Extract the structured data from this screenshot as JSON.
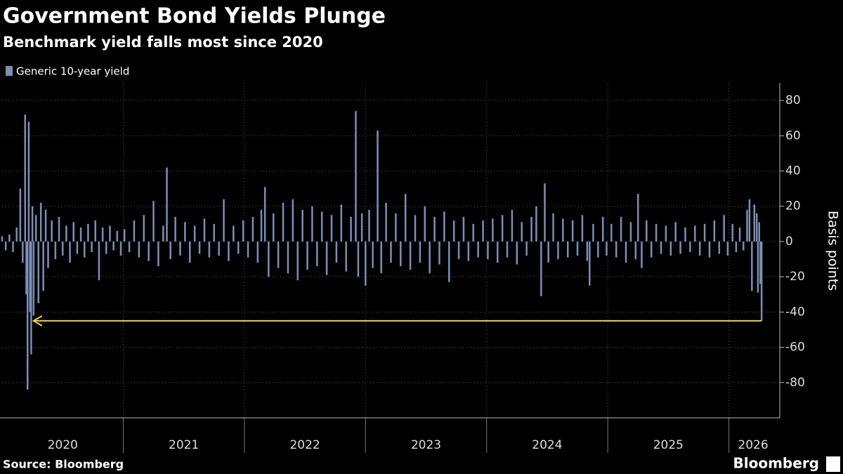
{
  "chart_data": {
    "type": "bar",
    "title": "Government Bond Yields Plunge",
    "subtitle": "Benchmark yield falls most since 2020",
    "y_label": "Basis points",
    "source": "Source: Bloomberg",
    "brand": "Bloomberg",
    "xlim": [
      2020,
      2026.42
    ],
    "ylim": [
      -100,
      90
    ],
    "yticks": [
      -80,
      -60,
      -40,
      -20,
      0,
      20,
      40,
      60,
      80
    ],
    "xgrid": [
      2021,
      2022,
      2023,
      2024,
      2025,
      2026
    ],
    "xticks": [
      {
        "value": 2020.5,
        "label": "2020"
      },
      {
        "value": 2021.5,
        "label": "2021"
      },
      {
        "value": 2022.5,
        "label": "2022"
      },
      {
        "value": 2023.5,
        "label": "2023"
      },
      {
        "value": 2024.5,
        "label": "2024"
      },
      {
        "value": 2025.5,
        "label": "2025"
      },
      {
        "value": 2026.2,
        "label": "2026"
      }
    ],
    "grid": true,
    "arrow": {
      "x": [
        2026.27,
        2020.26
      ],
      "y": -45,
      "color": "#f0d43a"
    },
    "series": [
      {
        "name": "Generic 10-year yield",
        "color": "#7b8fb5",
        "x": [
          2020,
          2020.03,
          2020.06,
          2020.09,
          2020.12,
          2020.15,
          2020.17,
          2020.19,
          2020.2,
          2020.21,
          2020.22,
          2020.23,
          2020.24,
          2020.25,
          2020.26,
          2020.28,
          2020.3,
          2020.32,
          2020.34,
          2020.36,
          2020.38,
          2020.41,
          2020.44,
          2020.47,
          2020.5,
          2020.53,
          2020.56,
          2020.59,
          2020.62,
          2020.65,
          2020.68,
          2020.71,
          2020.74,
          2020.77,
          2020.8,
          2020.83,
          2020.86,
          2020.89,
          2020.92,
          2020.95,
          2020.98,
          2021.01,
          2021.05,
          2021.09,
          2021.13,
          2021.17,
          2021.21,
          2021.25,
          2021.29,
          2021.33,
          2021.36,
          2021.39,
          2021.43,
          2021.47,
          2021.51,
          2021.55,
          2021.59,
          2021.63,
          2021.67,
          2021.71,
          2021.75,
          2021.79,
          2021.83,
          2021.87,
          2021.91,
          2021.95,
          2021.99,
          2022.03,
          2022.07,
          2022.11,
          2022.14,
          2022.17,
          2022.2,
          2022.24,
          2022.28,
          2022.32,
          2022.36,
          2022.4,
          2022.44,
          2022.48,
          2022.52,
          2022.56,
          2022.6,
          2022.64,
          2022.68,
          2022.72,
          2022.76,
          2022.8,
          2022.84,
          2022.88,
          2022.92,
          2022.94,
          2022.97,
          2023,
          2023.03,
          2023.06,
          2023.1,
          2023.13,
          2023.17,
          2023.21,
          2023.25,
          2023.29,
          2023.33,
          2023.37,
          2023.41,
          2023.45,
          2023.49,
          2023.53,
          2023.57,
          2023.61,
          2023.65,
          2023.69,
          2023.73,
          2023.77,
          2023.81,
          2023.85,
          2023.89,
          2023.93,
          2023.97,
          2024.01,
          2024.05,
          2024.09,
          2024.13,
          2024.17,
          2024.21,
          2024.25,
          2024.29,
          2024.33,
          2024.37,
          2024.41,
          2024.45,
          2024.48,
          2024.51,
          2024.55,
          2024.59,
          2024.63,
          2024.67,
          2024.71,
          2024.75,
          2024.79,
          2024.83,
          2024.85,
          2024.88,
          2024.92,
          2024.96,
          2024.99,
          2025.03,
          2025.07,
          2025.11,
          2025.15,
          2025.19,
          2025.23,
          2025.25,
          2025.28,
          2025.32,
          2025.36,
          2025.4,
          2025.44,
          2025.48,
          2025.52,
          2025.56,
          2025.6,
          2025.64,
          2025.68,
          2025.72,
          2025.76,
          2025.8,
          2025.84,
          2025.88,
          2025.92,
          2025.96,
          2025.99,
          2026.03,
          2026.06,
          2026.09,
          2026.12,
          2026.15,
          2026.17,
          2026.19,
          2026.21,
          2026.23,
          2026.24,
          2026.25,
          2026.26,
          2026.27
        ],
        "values": [
          3,
          -5,
          4,
          -6,
          8,
          30,
          -12,
          72,
          -30,
          -84,
          68,
          -40,
          -64,
          20,
          -42,
          15,
          -35,
          22,
          -28,
          18,
          -15,
          12,
          -10,
          14,
          -8,
          9,
          -12,
          11,
          -7,
          8,
          -9,
          10,
          -6,
          12,
          -22,
          8,
          -7,
          9,
          -5,
          6,
          -8,
          7,
          -6,
          12,
          -9,
          15,
          -11,
          23,
          -14,
          9,
          42,
          -10,
          14,
          -8,
          11,
          -12,
          9,
          -7,
          13,
          -9,
          10,
          -8,
          24,
          -11,
          9,
          -7,
          12,
          -9,
          14,
          -12,
          18,
          31,
          -20,
          16,
          -15,
          22,
          -18,
          24,
          -22,
          18,
          -16,
          20,
          -14,
          17,
          -19,
          15,
          -12,
          21,
          -17,
          14,
          74,
          -20,
          16,
          -25,
          18,
          -15,
          63,
          -18,
          22,
          -12,
          16,
          -14,
          27,
          -16,
          15,
          -12,
          20,
          -18,
          14,
          -13,
          17,
          -23,
          12,
          -10,
          14,
          -11,
          10,
          -9,
          12,
          -10,
          13,
          -12,
          15,
          -9,
          18,
          -13,
          11,
          -8,
          14,
          20,
          -31,
          33,
          -12,
          16,
          -10,
          13,
          -9,
          12,
          -8,
          15,
          -11,
          -25,
          10,
          -9,
          14,
          -8,
          10,
          -9,
          14,
          -12,
          11,
          -10,
          27,
          -15,
          12,
          -9,
          10,
          -7,
          9,
          -8,
          11,
          -7,
          8,
          -6,
          9,
          -8,
          10,
          -9,
          12,
          -7,
          15,
          -8,
          10,
          -6,
          8,
          -5,
          18,
          24,
          -28,
          21,
          16,
          -29,
          11,
          -24,
          -45
        ]
      }
    ]
  }
}
